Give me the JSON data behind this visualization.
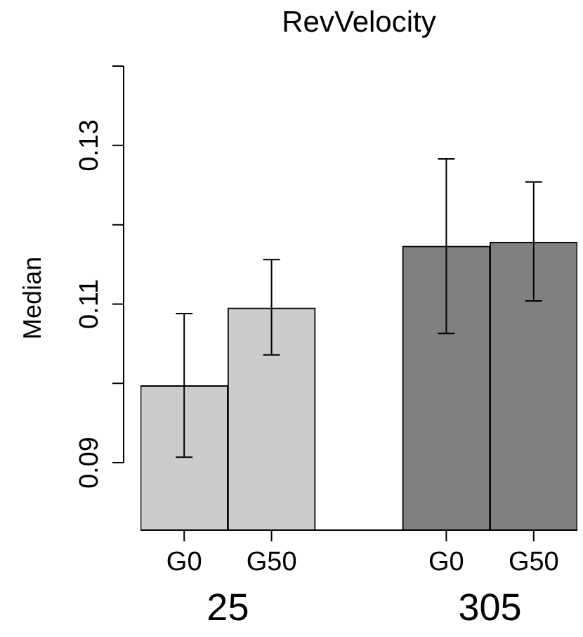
{
  "chart_data": {
    "type": "bar",
    "title": "RevVelocity",
    "ylabel": "Median",
    "categories": [
      "G0",
      "G50",
      null,
      "G0",
      "G50"
    ],
    "values": [
      0.0997,
      0.1095,
      null,
      0.1173,
      0.1178
    ],
    "colors": [
      "#cccccc",
      "#cccccc",
      null,
      "#808080",
      "#808080"
    ],
    "errors": [
      [
        0.0907,
        0.1088
      ],
      [
        0.1036,
        0.1156
      ],
      null,
      [
        0.1063,
        0.1283
      ],
      [
        0.1104,
        0.1254
      ]
    ],
    "ylim": [
      0.0815,
      0.14
    ],
    "yticks": [
      0.09,
      {
        "value": 0.1,
        "label": null
      },
      0.11,
      {
        "value": 0.12,
        "label": null
      },
      0.13,
      {
        "value": 0.14,
        "label": null
      }
    ],
    "annotations": [
      "25",
      "305"
    ],
    "legend": false
  }
}
